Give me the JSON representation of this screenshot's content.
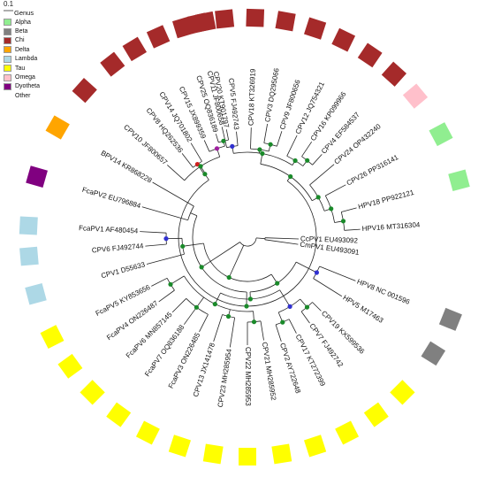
{
  "scale": {
    "label": "0.1"
  },
  "legend": {
    "title": "Genus",
    "items": [
      {
        "label": "Alpha",
        "color": "#90ee90"
      },
      {
        "label": "Beta",
        "color": "#808080"
      },
      {
        "label": "Chi",
        "color": "#a52a2a"
      },
      {
        "label": "Delta",
        "color": "#ffa500"
      },
      {
        "label": "Lambda",
        "color": "#add8e6"
      },
      {
        "label": "Tau",
        "color": "#ffff00"
      },
      {
        "label": "Omega",
        "color": "#ffc0cb"
      },
      {
        "label": "Dyotheta",
        "color": "#800080"
      },
      {
        "label": "Other",
        "color": ""
      }
    ]
  },
  "tree": {
    "taxa": [
      {
        "label": "CPV11 JF800658",
        "genus": "Chi"
      },
      {
        "label": "CPV5 FJ492743",
        "genus": "Chi"
      },
      {
        "label": "CPV18 KT326919",
        "genus": "Chi"
      },
      {
        "label": "CPV3 DQ295066",
        "genus": "Chi"
      },
      {
        "label": "CPV9 JF800656",
        "genus": "Chi"
      },
      {
        "label": "CPV12 JQ754321",
        "genus": "Chi"
      },
      {
        "label": "CPV16 KP099966",
        "genus": "Chi"
      },
      {
        "label": "CPV4 EF584537",
        "genus": "Chi"
      },
      {
        "label": "CPV24 OP432240",
        "genus": "Omega"
      },
      {
        "label": "CPV26 PP316141",
        "genus": "Alpha"
      },
      {
        "label": "HPV18 PP922121",
        "genus": "Alpha"
      },
      {
        "label": "HPV16 MT316304",
        "genus": "Other"
      },
      {
        "label": "CcPV1 EU493092",
        "genus": "Other"
      },
      {
        "label": "CmPV1 EU493091",
        "genus": "Other"
      },
      {
        "label": "HPV8 NC 001596",
        "genus": "Beta"
      },
      {
        "label": "HPV5 M17463",
        "genus": "Beta"
      },
      {
        "label": "CPV19 KX599536",
        "genus": "Tau"
      },
      {
        "label": "CPV7 FJ492742",
        "genus": "Tau"
      },
      {
        "label": "CPV17 KT272399",
        "genus": "Tau"
      },
      {
        "label": "CPV2 AY722648",
        "genus": "Tau"
      },
      {
        "label": "CPV21 MH285952",
        "genus": "Tau"
      },
      {
        "label": "CPV22 MH285953",
        "genus": "Tau"
      },
      {
        "label": "CPV23 MH285954",
        "genus": "Tau"
      },
      {
        "label": "CPV13 JX141478",
        "genus": "Tau"
      },
      {
        "label": "FcaPV3 ON226485",
        "genus": "Tau"
      },
      {
        "label": "FcaPV7 OQ836188",
        "genus": "Tau"
      },
      {
        "label": "FcaPV6 MN857145",
        "genus": "Tau"
      },
      {
        "label": "FcaPV4 ON226487",
        "genus": "Tau"
      },
      {
        "label": "FcaPV5 KY853656",
        "genus": "Tau"
      },
      {
        "label": "CPV1 D55633",
        "genus": "Lambda"
      },
      {
        "label": "CPV6 FJ492744",
        "genus": "Lambda"
      },
      {
        "label": "FcaPV1 AF480454",
        "genus": "Lambda"
      },
      {
        "label": "FcaPV2 EU796884",
        "genus": "Dyotheta"
      },
      {
        "label": "BPV14 KR868228",
        "genus": "Delta"
      },
      {
        "label": "CPV10 JF800657",
        "genus": "Chi"
      },
      {
        "label": "CPV8 HQ262536",
        "genus": "Chi"
      },
      {
        "label": "CPV14 JQ701802",
        "genus": "Chi"
      },
      {
        "label": "CPV15 JX899359",
        "genus": "Chi"
      },
      {
        "label": "CPV25 OQ836189",
        "genus": "Chi"
      },
      {
        "label": "CPV20 KT901797",
        "genus": "Chi"
      }
    ]
  }
}
